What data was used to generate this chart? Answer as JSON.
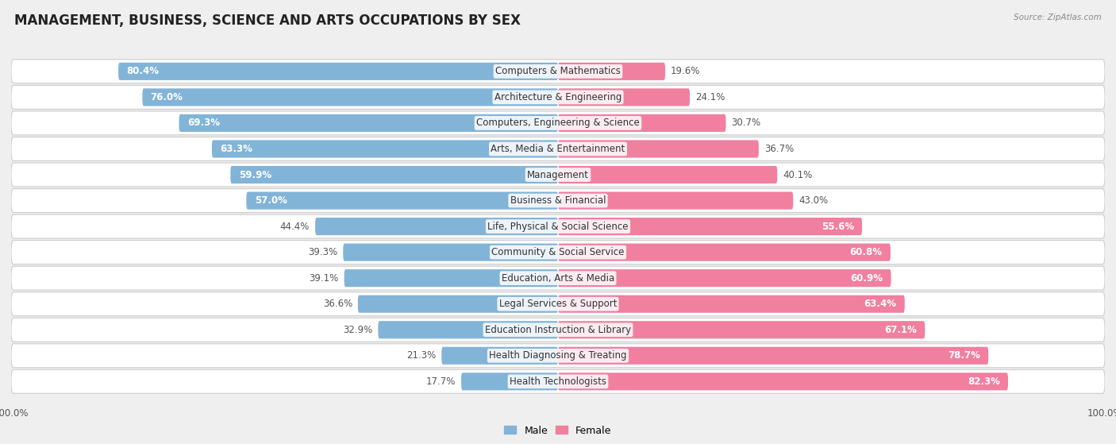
{
  "title": "MANAGEMENT, BUSINESS, SCIENCE AND ARTS OCCUPATIONS BY SEX",
  "source": "Source: ZipAtlas.com",
  "categories": [
    "Computers & Mathematics",
    "Architecture & Engineering",
    "Computers, Engineering & Science",
    "Arts, Media & Entertainment",
    "Management",
    "Business & Financial",
    "Life, Physical & Social Science",
    "Community & Social Service",
    "Education, Arts & Media",
    "Legal Services & Support",
    "Education Instruction & Library",
    "Health Diagnosing & Treating",
    "Health Technologists"
  ],
  "male_pct": [
    80.4,
    76.0,
    69.3,
    63.3,
    59.9,
    57.0,
    44.4,
    39.3,
    39.1,
    36.6,
    32.9,
    21.3,
    17.7
  ],
  "female_pct": [
    19.6,
    24.1,
    30.7,
    36.7,
    40.1,
    43.0,
    55.6,
    60.8,
    60.9,
    63.4,
    67.1,
    78.7,
    82.3
  ],
  "male_color": "#82b4d8",
  "female_color": "#f07fa0",
  "bg_color": "#efefef",
  "row_bg_color": "#ffffff",
  "row_shadow_color": "#d8d8d8",
  "title_fontsize": 12,
  "bar_label_fontsize": 8.5,
  "cat_label_fontsize": 8.5,
  "tick_fontsize": 8.5,
  "legend_fontsize": 9,
  "inside_label_threshold_male": 55,
  "inside_label_threshold_female": 55
}
